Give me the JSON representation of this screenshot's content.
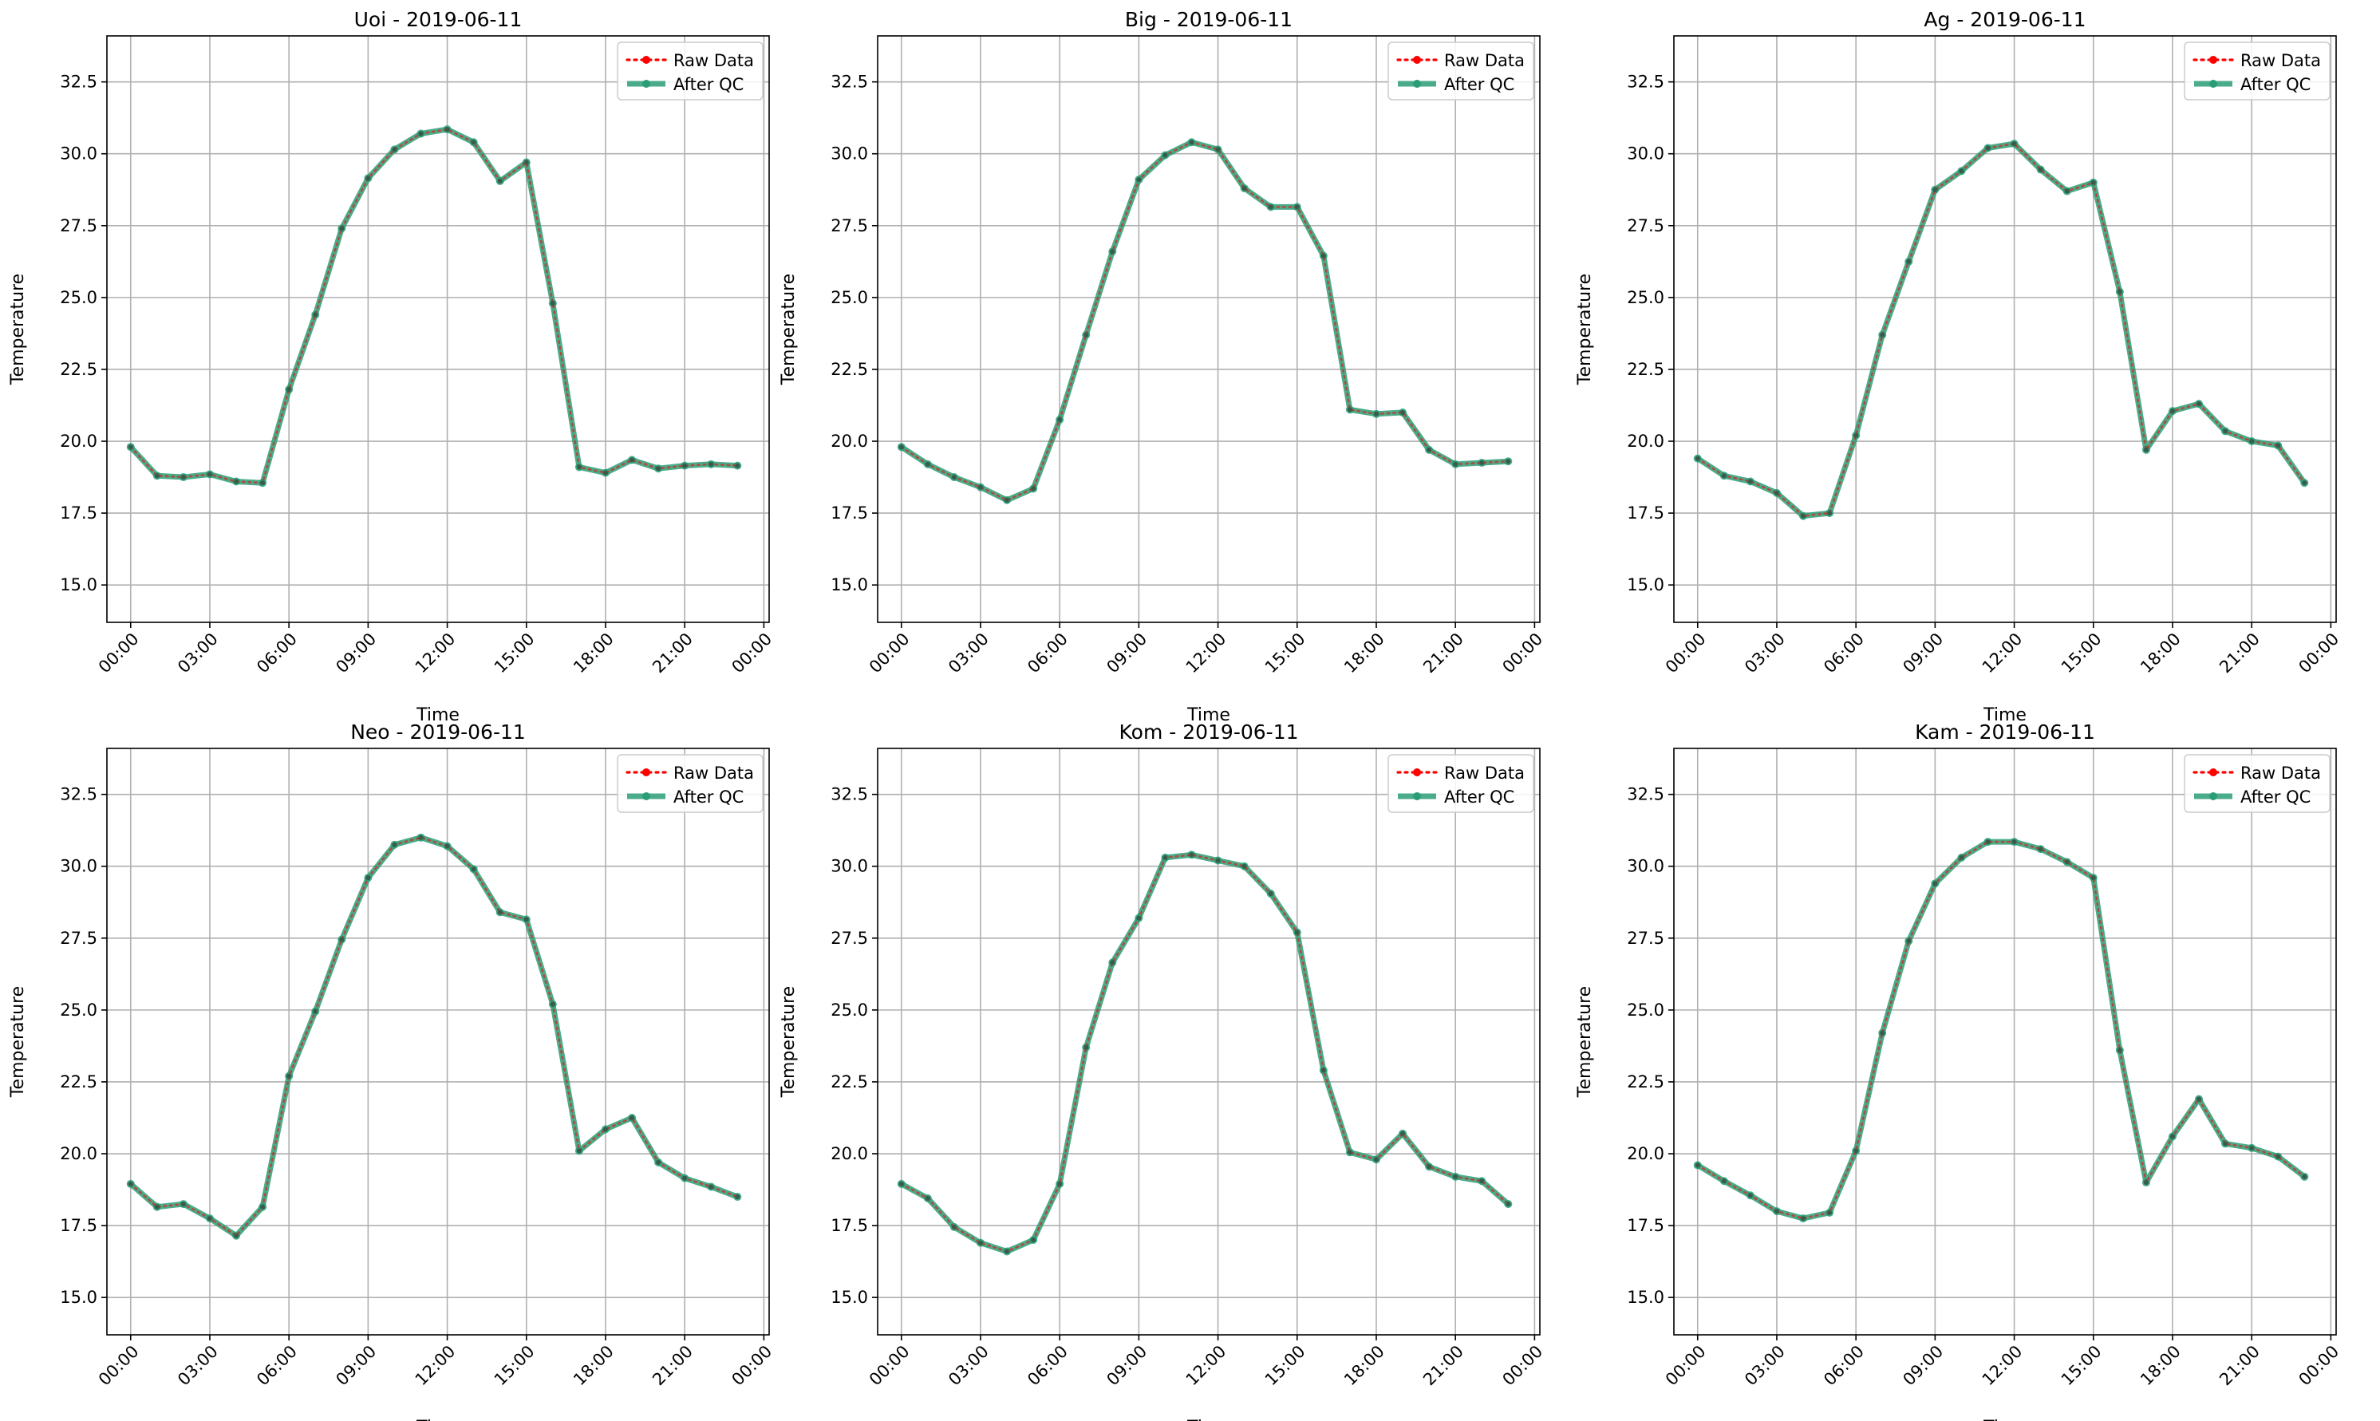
{
  "chart_data": [
    {
      "type": "line",
      "title": "Uoi - 2019-06-11",
      "xlabel": "Time",
      "ylabel": "Temperature",
      "x_ticks": [
        "00:00",
        "03:00",
        "06:00",
        "09:00",
        "12:00",
        "15:00",
        "18:00",
        "21:00",
        "00:00"
      ],
      "y_ticks": [
        "15.0",
        "17.5",
        "20.0",
        "22.5",
        "25.0",
        "27.5",
        "30.0",
        "32.5"
      ],
      "ylim": [
        13.7,
        34.1
      ],
      "xlim_hours": [
        -0.9,
        24.2
      ],
      "grid": true,
      "legend": {
        "position": "top-right",
        "entries": [
          "Raw Data",
          "After QC"
        ]
      },
      "x_hours": [
        0,
        1,
        2,
        3,
        4,
        5,
        6,
        7,
        8,
        9,
        10,
        11,
        12,
        13,
        14,
        15,
        16,
        17,
        18,
        19,
        20,
        21,
        22,
        23
      ],
      "series": [
        {
          "name": "Raw Data",
          "color": "#ff0000",
          "style": "dotted",
          "values": [
            19.8,
            18.8,
            18.75,
            18.85,
            18.6,
            18.55,
            21.8,
            24.4,
            27.4,
            29.15,
            30.15,
            30.7,
            30.85,
            30.4,
            29.05,
            29.7,
            24.8,
            19.1,
            18.9,
            19.35,
            19.05,
            19.15,
            19.2,
            19.15
          ]
        },
        {
          "name": "After QC",
          "color": "#2a9d76",
          "style": "solid",
          "values": [
            19.8,
            18.8,
            18.75,
            18.85,
            18.6,
            18.55,
            21.8,
            24.4,
            27.4,
            29.15,
            30.15,
            30.7,
            30.85,
            30.4,
            29.05,
            29.7,
            24.8,
            19.1,
            18.9,
            19.35,
            19.05,
            19.15,
            19.2,
            19.15
          ]
        }
      ]
    },
    {
      "type": "line",
      "title": "Big - 2019-06-11",
      "xlabel": "Time",
      "ylabel": "Temperature",
      "x_ticks": [
        "00:00",
        "03:00",
        "06:00",
        "09:00",
        "12:00",
        "15:00",
        "18:00",
        "21:00",
        "00:00"
      ],
      "y_ticks": [
        "15.0",
        "17.5",
        "20.0",
        "22.5",
        "25.0",
        "27.5",
        "30.0",
        "32.5"
      ],
      "ylim": [
        13.7,
        34.1
      ],
      "xlim_hours": [
        -0.9,
        24.2
      ],
      "grid": true,
      "legend": {
        "position": "top-right",
        "entries": [
          "Raw Data",
          "After QC"
        ]
      },
      "x_hours": [
        0,
        1,
        2,
        3,
        4,
        5,
        6,
        7,
        8,
        9,
        10,
        11,
        12,
        13,
        14,
        15,
        16,
        17,
        18,
        19,
        20,
        21,
        22,
        23
      ],
      "series": [
        {
          "name": "Raw Data",
          "color": "#ff0000",
          "style": "dotted",
          "values": [
            19.8,
            19.2,
            18.75,
            18.4,
            17.95,
            18.35,
            20.75,
            23.7,
            26.6,
            29.1,
            29.95,
            30.4,
            30.15,
            28.8,
            28.15,
            28.15,
            26.45,
            21.1,
            20.95,
            21.0,
            19.7,
            19.2,
            19.25,
            19.3
          ]
        },
        {
          "name": "After QC",
          "color": "#2a9d76",
          "style": "solid",
          "values": [
            19.8,
            19.2,
            18.75,
            18.4,
            17.95,
            18.35,
            20.75,
            23.7,
            26.6,
            29.1,
            29.95,
            30.4,
            30.15,
            28.8,
            28.15,
            28.15,
            26.45,
            21.1,
            20.95,
            21.0,
            19.7,
            19.2,
            19.25,
            19.3
          ]
        }
      ]
    },
    {
      "type": "line",
      "title": "Ag - 2019-06-11",
      "xlabel": "Time",
      "ylabel": "Temperature",
      "x_ticks": [
        "00:00",
        "03:00",
        "06:00",
        "09:00",
        "12:00",
        "15:00",
        "18:00",
        "21:00",
        "00:00"
      ],
      "y_ticks": [
        "15.0",
        "17.5",
        "20.0",
        "22.5",
        "25.0",
        "27.5",
        "30.0",
        "32.5"
      ],
      "ylim": [
        13.7,
        34.1
      ],
      "xlim_hours": [
        -0.9,
        24.2
      ],
      "grid": true,
      "legend": {
        "position": "top-right",
        "entries": [
          "Raw Data",
          "After QC"
        ]
      },
      "x_hours": [
        0,
        1,
        2,
        3,
        4,
        5,
        6,
        7,
        8,
        9,
        10,
        11,
        12,
        13,
        14,
        15,
        16,
        17,
        18,
        19,
        20,
        21,
        22,
        23
      ],
      "series": [
        {
          "name": "Raw Data",
          "color": "#ff0000",
          "style": "dotted",
          "values": [
            19.4,
            18.8,
            18.6,
            18.2,
            17.4,
            17.5,
            20.2,
            23.7,
            26.25,
            28.75,
            29.4,
            30.2,
            30.35,
            29.45,
            28.7,
            29.0,
            25.2,
            19.7,
            21.05,
            21.3,
            20.35,
            20.0,
            19.85,
            18.55
          ]
        },
        {
          "name": "After QC",
          "color": "#2a9d76",
          "style": "solid",
          "values": [
            19.4,
            18.8,
            18.6,
            18.2,
            17.4,
            17.5,
            20.2,
            23.7,
            26.25,
            28.75,
            29.4,
            30.2,
            30.35,
            29.45,
            28.7,
            29.0,
            25.2,
            19.7,
            21.05,
            21.3,
            20.35,
            20.0,
            19.85,
            18.55
          ]
        }
      ]
    },
    {
      "type": "line",
      "title": "Neo - 2019-06-11",
      "xlabel": "Time",
      "ylabel": "Temperature",
      "x_ticks": [
        "00:00",
        "03:00",
        "06:00",
        "09:00",
        "12:00",
        "15:00",
        "18:00",
        "21:00",
        "00:00"
      ],
      "y_ticks": [
        "15.0",
        "17.5",
        "20.0",
        "22.5",
        "25.0",
        "27.5",
        "30.0",
        "32.5"
      ],
      "ylim": [
        13.7,
        34.1
      ],
      "xlim_hours": [
        -0.9,
        24.2
      ],
      "grid": true,
      "legend": {
        "position": "top-right",
        "entries": [
          "Raw Data",
          "After QC"
        ]
      },
      "x_hours": [
        0,
        1,
        2,
        3,
        4,
        5,
        6,
        7,
        8,
        9,
        10,
        11,
        12,
        13,
        14,
        15,
        16,
        17,
        18,
        19,
        20,
        21,
        22,
        23
      ],
      "series": [
        {
          "name": "Raw Data",
          "color": "#ff0000",
          "style": "dotted",
          "values": [
            18.95,
            18.15,
            18.25,
            17.75,
            17.15,
            18.15,
            22.7,
            24.95,
            27.45,
            29.6,
            30.75,
            31.0,
            30.7,
            29.9,
            28.4,
            28.15,
            25.2,
            20.1,
            20.85,
            21.25,
            19.7,
            19.15,
            18.85,
            18.5
          ]
        },
        {
          "name": "After QC",
          "color": "#2a9d76",
          "style": "solid",
          "values": [
            18.95,
            18.15,
            18.25,
            17.75,
            17.15,
            18.15,
            22.7,
            24.95,
            27.45,
            29.6,
            30.75,
            31.0,
            30.7,
            29.9,
            28.4,
            28.15,
            25.2,
            20.1,
            20.85,
            21.25,
            19.7,
            19.15,
            18.85,
            18.5
          ]
        }
      ]
    },
    {
      "type": "line",
      "title": "Kom - 2019-06-11",
      "xlabel": "Time",
      "ylabel": "Temperature",
      "x_ticks": [
        "00:00",
        "03:00",
        "06:00",
        "09:00",
        "12:00",
        "15:00",
        "18:00",
        "21:00",
        "00:00"
      ],
      "y_ticks": [
        "15.0",
        "17.5",
        "20.0",
        "22.5",
        "25.0",
        "27.5",
        "30.0",
        "32.5"
      ],
      "ylim": [
        13.7,
        34.1
      ],
      "xlim_hours": [
        -0.9,
        24.2
      ],
      "grid": true,
      "legend": {
        "position": "top-right",
        "entries": [
          "Raw Data",
          "After QC"
        ]
      },
      "x_hours": [
        0,
        1,
        2,
        3,
        4,
        5,
        6,
        7,
        8,
        9,
        10,
        11,
        12,
        13,
        14,
        15,
        16,
        17,
        18,
        19,
        20,
        21,
        22,
        23
      ],
      "series": [
        {
          "name": "Raw Data",
          "color": "#ff0000",
          "style": "dotted",
          "values": [
            18.95,
            18.45,
            17.45,
            16.9,
            16.6,
            17.0,
            18.95,
            23.7,
            26.65,
            28.2,
            30.3,
            30.4,
            30.2,
            30.0,
            29.05,
            27.7,
            22.9,
            20.05,
            19.8,
            20.7,
            19.55,
            19.2,
            19.05,
            18.25
          ]
        },
        {
          "name": "After QC",
          "color": "#2a9d76",
          "style": "solid",
          "values": [
            18.95,
            18.45,
            17.45,
            16.9,
            16.6,
            17.0,
            18.95,
            23.7,
            26.65,
            28.2,
            30.3,
            30.4,
            30.2,
            30.0,
            29.05,
            27.7,
            22.9,
            20.05,
            19.8,
            20.7,
            19.55,
            19.2,
            19.05,
            18.25
          ]
        }
      ]
    },
    {
      "type": "line",
      "title": "Kam - 2019-06-11",
      "xlabel": "Time",
      "ylabel": "Temperature",
      "x_ticks": [
        "00:00",
        "03:00",
        "06:00",
        "09:00",
        "12:00",
        "15:00",
        "18:00",
        "21:00",
        "00:00"
      ],
      "y_ticks": [
        "15.0",
        "17.5",
        "20.0",
        "22.5",
        "25.0",
        "27.5",
        "30.0",
        "32.5"
      ],
      "ylim": [
        13.7,
        34.1
      ],
      "xlim_hours": [
        -0.9,
        24.2
      ],
      "grid": true,
      "legend": {
        "position": "top-right",
        "entries": [
          "Raw Data",
          "After QC"
        ]
      },
      "x_hours": [
        0,
        1,
        2,
        3,
        4,
        5,
        6,
        7,
        8,
        9,
        10,
        11,
        12,
        13,
        14,
        15,
        16,
        17,
        18,
        19,
        20,
        21,
        22,
        23
      ],
      "series": [
        {
          "name": "Raw Data",
          "color": "#ff0000",
          "style": "dotted",
          "values": [
            19.6,
            19.05,
            18.55,
            18.0,
            17.75,
            17.95,
            20.1,
            24.2,
            27.4,
            29.4,
            30.3,
            30.85,
            30.85,
            30.6,
            30.15,
            29.6,
            23.6,
            19.0,
            20.6,
            21.9,
            20.35,
            20.2,
            19.9,
            19.2
          ]
        },
        {
          "name": "After QC",
          "color": "#2a9d76",
          "style": "solid",
          "values": [
            19.6,
            19.05,
            18.55,
            18.0,
            17.75,
            17.95,
            20.1,
            24.2,
            27.4,
            29.4,
            30.3,
            30.85,
            30.85,
            30.6,
            30.15,
            29.6,
            23.6,
            19.0,
            20.6,
            21.9,
            20.35,
            20.2,
            19.9,
            19.2
          ]
        }
      ]
    }
  ]
}
